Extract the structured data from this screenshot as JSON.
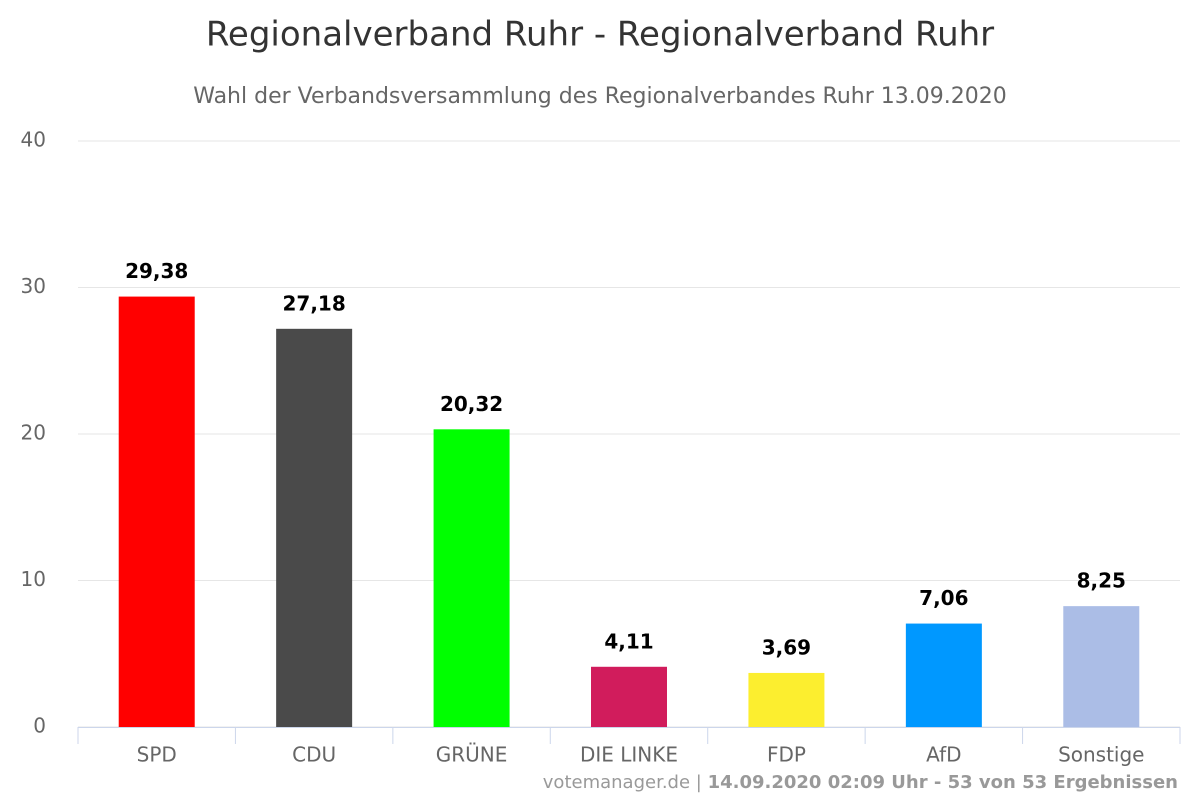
{
  "chart_data": {
    "type": "bar",
    "title": "Regionalverband Ruhr - Regionalverband Ruhr",
    "subtitle": "Wahl der Verbandsversammlung des Regionalverbandes Ruhr 13.09.2020",
    "categories": [
      "SPD",
      "CDU",
      "GRÜNE",
      "DIE LINKE",
      "FDP",
      "AfD",
      "Sonstige"
    ],
    "values": [
      29.38,
      27.18,
      20.32,
      4.11,
      3.69,
      7.06,
      8.25
    ],
    "value_labels": [
      "29,38",
      "27,18",
      "20,32",
      "4,11",
      "3,69",
      "7,06",
      "8,25"
    ],
    "colors": [
      "#ff0000",
      "#4a4a4a",
      "#00ff00",
      "#d11c5c",
      "#fcee2f",
      "#0098ff",
      "#abbde6"
    ],
    "ylim": [
      0,
      40
    ],
    "yticks": [
      0,
      10,
      20,
      30,
      40
    ],
    "grid": true,
    "footer": {
      "source": "votemanager.de |",
      "status": "14.09.2020 02:09 Uhr - 53 von 53 Ergebnissen"
    }
  }
}
